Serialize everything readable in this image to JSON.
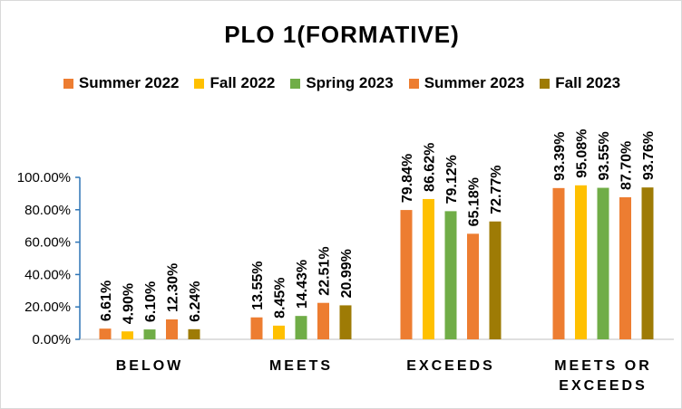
{
  "chart_data": {
    "type": "bar",
    "title": "PLO 1(FORMATIVE)",
    "xlabel": "",
    "ylabel": "",
    "categories": [
      "BELOW",
      "MEETS",
      "EXCEEDS",
      "MEETS OR EXCEEDS"
    ],
    "series": [
      {
        "name": "Summer 2022",
        "color": "#ed7d31",
        "values": [
          6.61,
          13.55,
          79.84,
          93.39
        ],
        "labels": [
          "6.61%",
          "13.55%",
          "79.84%",
          "93.39%"
        ]
      },
      {
        "name": "Fall 2022",
        "color": "#ffc000",
        "values": [
          4.9,
          8.45,
          86.62,
          95.08
        ],
        "labels": [
          "4.90%",
          "8.45%",
          "86.62%",
          "95.08%"
        ]
      },
      {
        "name": "Spring 2023",
        "color": "#70ad47",
        "values": [
          6.1,
          14.43,
          79.12,
          93.55
        ],
        "labels": [
          "6.10%",
          "14.43%",
          "79.12%",
          "93.55%"
        ]
      },
      {
        "name": "Summer 2023",
        "color": "#ed7d31",
        "values": [
          12.3,
          22.51,
          65.18,
          87.7
        ],
        "labels": [
          "12.30%",
          "22.51%",
          "65.18%",
          "87.70%"
        ]
      },
      {
        "name": "Fall 2023",
        "color": "#9e7b05",
        "values": [
          6.24,
          20.99,
          72.77,
          93.76
        ],
        "labels": [
          "6.24%",
          "20.99%",
          "72.77%",
          "93.76%"
        ]
      }
    ],
    "ylim": [
      0,
      100
    ],
    "yticks": [
      0,
      20,
      40,
      60,
      80,
      100
    ],
    "ytick_labels": [
      "0.00%",
      "20.00%",
      "40.00%",
      "60.00%",
      "80.00%",
      "100.00%"
    ],
    "grid": false,
    "legend_position": "top"
  }
}
